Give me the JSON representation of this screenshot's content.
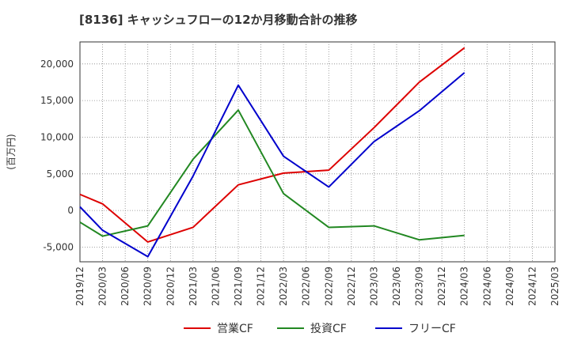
{
  "chart_data": {
    "type": "line",
    "title": "[8136]  キャッシュフローの12か月移動合計の推移",
    "ylabel": "(百万円)",
    "xlabel": "",
    "ylim": [
      -7000,
      23000
    ],
    "yticks": [
      -5000,
      0,
      5000,
      10000,
      15000,
      20000
    ],
    "ytick_labels": [
      "-5,000",
      "0",
      "5,000",
      "10,000",
      "15,000",
      "20,000"
    ],
    "x_categories": [
      "2019/12",
      "2020/03",
      "2020/06",
      "2020/09",
      "2020/12",
      "2021/03",
      "2021/06",
      "2021/09",
      "2021/12",
      "2022/03",
      "2022/06",
      "2022/09",
      "2022/12",
      "2023/03",
      "2023/06",
      "2023/09",
      "2023/12",
      "2024/03",
      "2024/06",
      "2024/09",
      "2024/12",
      "2025/03"
    ],
    "grid": true,
    "legend_position": "bottom",
    "series": [
      {
        "name": "営業CF",
        "color": "#dd0000",
        "points": [
          {
            "x": "2019/12",
            "y": 2200
          },
          {
            "x": "2020/03",
            "y": 900
          },
          {
            "x": "2020/09",
            "y": -4300
          },
          {
            "x": "2021/03",
            "y": -2300
          },
          {
            "x": "2021/09",
            "y": 3500
          },
          {
            "x": "2022/03",
            "y": 5100
          },
          {
            "x": "2022/09",
            "y": 5500
          },
          {
            "x": "2023/03",
            "y": 11300
          },
          {
            "x": "2023/09",
            "y": 17500
          },
          {
            "x": "2024/03",
            "y": 22200
          }
        ]
      },
      {
        "name": "投資CF",
        "color": "#228822",
        "points": [
          {
            "x": "2019/12",
            "y": -1600
          },
          {
            "x": "2020/03",
            "y": -3500
          },
          {
            "x": "2020/09",
            "y": -2100
          },
          {
            "x": "2021/03",
            "y": 7000
          },
          {
            "x": "2021/09",
            "y": 13700
          },
          {
            "x": "2022/03",
            "y": 2300
          },
          {
            "x": "2022/09",
            "y": -2300
          },
          {
            "x": "2023/03",
            "y": -2100
          },
          {
            "x": "2023/09",
            "y": -4000
          },
          {
            "x": "2024/03",
            "y": -3400
          }
        ]
      },
      {
        "name": "フリーCF",
        "color": "#0000cc",
        "points": [
          {
            "x": "2019/12",
            "y": 500
          },
          {
            "x": "2020/03",
            "y": -2700
          },
          {
            "x": "2020/09",
            "y": -6300
          },
          {
            "x": "2021/03",
            "y": 4700
          },
          {
            "x": "2021/09",
            "y": 17100
          },
          {
            "x": "2022/03",
            "y": 7400
          },
          {
            "x": "2022/09",
            "y": 3200
          },
          {
            "x": "2023/03",
            "y": 9400
          },
          {
            "x": "2023/09",
            "y": 13600
          },
          {
            "x": "2024/03",
            "y": 18800
          }
        ]
      }
    ]
  }
}
